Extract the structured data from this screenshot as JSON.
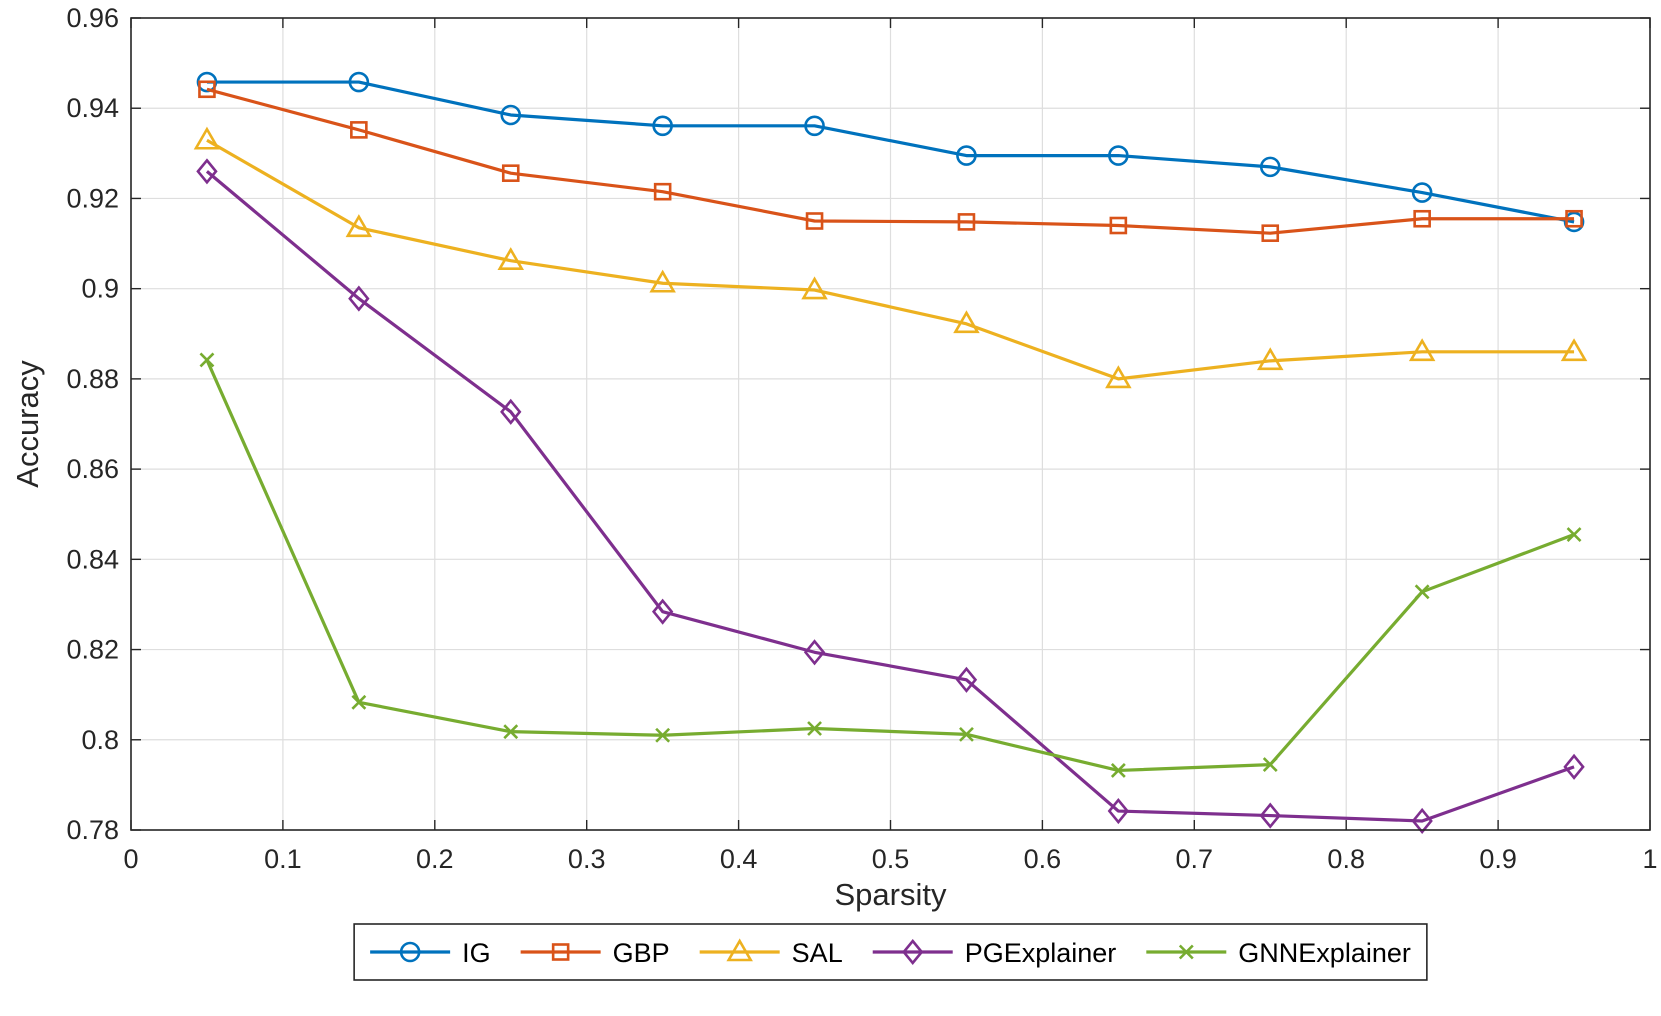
{
  "chart_data": {
    "type": "line",
    "title": "",
    "xlabel": "Sparsity",
    "ylabel": "Accuracy",
    "xlim": [
      0,
      1
    ],
    "ylim": [
      0.78,
      0.96
    ],
    "grid": true,
    "legend_position": "bottom-outside",
    "xticks": [
      0,
      0.1,
      0.2,
      0.3,
      0.4,
      0.5,
      0.6,
      0.7,
      0.8,
      0.9,
      1
    ],
    "xtick_labels": [
      "0",
      "0.1",
      "0.2",
      "0.3",
      "0.4",
      "0.5",
      "0.6",
      "0.7",
      "0.8",
      "0.9",
      "1"
    ],
    "yticks": [
      0.78,
      0.8,
      0.82,
      0.84,
      0.86,
      0.88,
      0.9,
      0.92,
      0.94,
      0.96
    ],
    "ytick_labels": [
      "0.78",
      "0.8",
      "0.82",
      "0.84",
      "0.86",
      "0.88",
      "0.9",
      "0.92",
      "0.94",
      "0.96"
    ],
    "x": [
      0.05,
      0.15,
      0.25,
      0.35,
      0.45,
      0.55,
      0.65,
      0.75,
      0.85,
      0.95
    ],
    "series": [
      {
        "name": "IG",
        "color": "#0072BD",
        "marker": "circle",
        "values": [
          0.9458,
          0.9458,
          0.9385,
          0.9361,
          0.9361,
          0.9295,
          0.9295,
          0.927,
          0.9213,
          0.9148
        ]
      },
      {
        "name": "GBP",
        "color": "#D95319",
        "marker": "square",
        "values": [
          0.9442,
          0.9352,
          0.9256,
          0.9215,
          0.915,
          0.9148,
          0.914,
          0.9123,
          0.9155,
          0.9155
        ]
      },
      {
        "name": "SAL",
        "color": "#EDB120",
        "marker": "triangle",
        "values": [
          0.9329,
          0.9135,
          0.9062,
          0.9012,
          0.8997,
          0.8922,
          0.88,
          0.884,
          0.886,
          0.886
        ]
      },
      {
        "name": "PGExplainer",
        "color": "#7E2F8E",
        "marker": "diamond",
        "values": [
          0.926,
          0.8978,
          0.8727,
          0.8284,
          0.8194,
          0.8133,
          0.7842,
          0.7832,
          0.782,
          0.794
        ]
      },
      {
        "name": "GNNExplainer",
        "color": "#77AC30",
        "marker": "x",
        "values": [
          0.8842,
          0.8083,
          0.8018,
          0.801,
          0.8025,
          0.8012,
          0.7932,
          0.7945,
          0.8328,
          0.8455
        ]
      }
    ]
  }
}
